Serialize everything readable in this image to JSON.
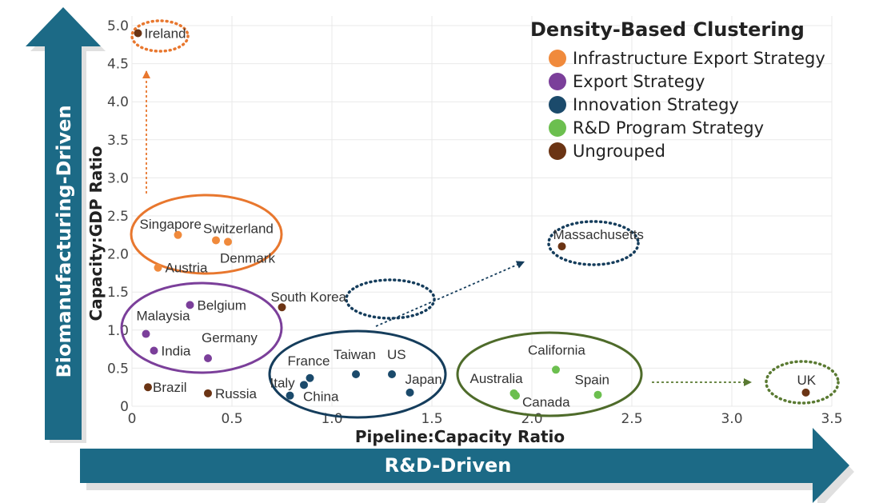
{
  "chart_data": {
    "type": "scatter",
    "title": "Density-Based Clustering",
    "xlabel": "Pipeline:Capacity Ratio",
    "ylabel": "Capacity:GDP Ratio",
    "xlim": [
      0,
      3.5
    ],
    "ylim": [
      0,
      5.0
    ],
    "x_ticks": [
      "0",
      "0.5",
      "1.0",
      "1.5",
      "2.0",
      "2.5",
      "3.0",
      "3.5"
    ],
    "y_ticks": [
      "0",
      "0.5",
      "1.0",
      "1.5",
      "2.0",
      "2.5",
      "3.0",
      "3.5",
      "4.0",
      "4.5",
      "5.0"
    ],
    "grid": true,
    "legend_position": "top-right",
    "series": [
      {
        "name": "Infrastructure Export Strategy",
        "color": "#f08a3c",
        "points": [
          {
            "label": "Singapore",
            "x": 0.23,
            "y": 2.25
          },
          {
            "label": "Switzerland",
            "x": 0.42,
            "y": 2.18
          },
          {
            "label": "Denmark",
            "x": 0.48,
            "y": 2.16
          },
          {
            "label": "Austria",
            "x": 0.13,
            "y": 1.82
          }
        ]
      },
      {
        "name": "Export Strategy",
        "color": "#7b3f9a",
        "points": [
          {
            "label": "Belgium",
            "x": 0.29,
            "y": 1.33
          },
          {
            "label": "Malaysia",
            "x": 0.07,
            "y": 0.95
          },
          {
            "label": "India",
            "x": 0.11,
            "y": 0.73
          },
          {
            "label": "Germany",
            "x": 0.38,
            "y": 0.63
          }
        ]
      },
      {
        "name": "Innovation Strategy",
        "color": "#1b4a6b",
        "points": [
          {
            "label": "France",
            "x": 0.89,
            "y": 0.37
          },
          {
            "label": "Taiwan",
            "x": 1.12,
            "y": 0.42
          },
          {
            "label": "US",
            "x": 1.3,
            "y": 0.42
          },
          {
            "label": "Japan",
            "x": 1.39,
            "y": 0.18
          },
          {
            "label": "Italy",
            "x": 0.79,
            "y": 0.14
          },
          {
            "label": "China",
            "x": 0.86,
            "y": 0.28
          }
        ]
      },
      {
        "name": "R&D Program Strategy",
        "color": "#6cbf4f",
        "points": [
          {
            "label": "California",
            "x": 2.12,
            "y": 0.48
          },
          {
            "label": "Australia",
            "x": 1.91,
            "y": 0.17
          },
          {
            "label": "Canada",
            "x": 1.92,
            "y": 0.14
          },
          {
            "label": "Spain",
            "x": 2.33,
            "y": 0.15
          }
        ]
      },
      {
        "name": "Ungrouped",
        "color": "#6b3414",
        "points": [
          {
            "label": "Ireland",
            "x": 0.03,
            "y": 4.9
          },
          {
            "label": "Massachusetts",
            "x": 2.15,
            "y": 2.1
          },
          {
            "label": "South Korea",
            "x": 0.75,
            "y": 1.3
          },
          {
            "label": "Brazil",
            "x": 0.08,
            "y": 0.25
          },
          {
            "label": "Russia",
            "x": 0.38,
            "y": 0.17
          },
          {
            "label": "UK",
            "x": 3.37,
            "y": 0.18
          }
        ]
      }
    ],
    "annotations": {
      "horizontal_arrow": "R&D-Driven",
      "vertical_arrow": "Biomanufacturing-Driven"
    }
  },
  "colors": {
    "arrow_fill": "#1c6a86",
    "cluster_orange": "#e8772e",
    "cluster_purple": "#7b3f9a",
    "cluster_navy": "#153d5c",
    "cluster_green": "#4e6b2a",
    "dotted_orange": "#e8772e",
    "dotted_navy": "#153d5c",
    "dotted_green": "#5a7a32",
    "ungrouped_ring": "#4e6b2a"
  }
}
